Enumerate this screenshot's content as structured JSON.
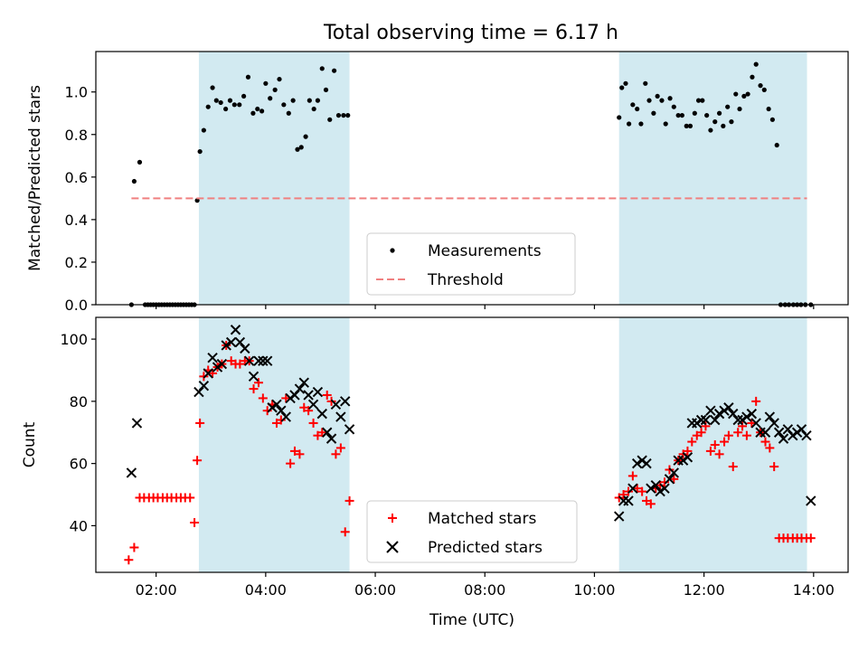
{
  "figure": {
    "title": "Total observing time = 6.17 h"
  },
  "chart_data": [
    {
      "type": "scatter",
      "ylabel": "Matched/Predicted stars",
      "xlabel": "",
      "xlim": [
        0.9,
        14.63
      ],
      "ylim": [
        0,
        1.19
      ],
      "yticks": [
        0.0,
        0.2,
        0.4,
        0.6,
        0.8,
        1.0
      ],
      "ytick_labels": [
        "0.0",
        "0.2",
        "0.4",
        "0.6",
        "0.8",
        "1.0"
      ],
      "xticks": [
        2,
        4,
        6,
        8,
        10,
        12,
        14
      ],
      "grid": false,
      "legend_position": "bottom-center",
      "shaded_intervals": [
        [
          2.78,
          5.53
        ],
        [
          10.45,
          13.88
        ]
      ],
      "shade_color": "#add8e6",
      "series": [
        {
          "name": "Measurements",
          "kind": "scatter",
          "color": "#000000",
          "marker": "dot",
          "x": [
            1.55,
            1.6,
            1.7,
            1.8,
            1.85,
            1.9,
            1.95,
            2.0,
            2.05,
            2.1,
            2.15,
            2.2,
            2.25,
            2.3,
            2.35,
            2.4,
            2.45,
            2.5,
            2.55,
            2.6,
            2.65,
            2.7,
            2.75,
            2.8,
            2.87,
            2.95,
            3.03,
            3.1,
            3.18,
            3.27,
            3.35,
            3.43,
            3.52,
            3.6,
            3.68,
            3.77,
            3.85,
            3.93,
            4.0,
            4.08,
            4.17,
            4.25,
            4.33,
            4.42,
            4.5,
            4.58,
            4.65,
            4.73,
            4.8,
            4.88,
            4.95,
            5.03,
            5.1,
            5.17,
            5.25,
            5.33,
            5.42,
            5.5,
            10.45,
            10.5,
            10.57,
            10.63,
            10.7,
            10.78,
            10.85,
            10.93,
            11.0,
            11.08,
            11.15,
            11.23,
            11.3,
            11.38,
            11.45,
            11.53,
            11.6,
            11.68,
            11.75,
            11.83,
            11.9,
            11.97,
            12.05,
            12.12,
            12.2,
            12.28,
            12.35,
            12.43,
            12.5,
            12.58,
            12.65,
            12.73,
            12.8,
            12.88,
            12.95,
            13.03,
            13.1,
            13.18,
            13.25,
            13.33,
            13.4,
            13.48,
            13.55,
            13.63,
            13.7,
            13.77,
            13.85,
            13.95
          ],
          "y": [
            0.0,
            0.58,
            0.67,
            0.0,
            0.0,
            0.0,
            0.0,
            0.0,
            0.0,
            0.0,
            0.0,
            0.0,
            0.0,
            0.0,
            0.0,
            0.0,
            0.0,
            0.0,
            0.0,
            0.0,
            0.0,
            0.0,
            0.49,
            0.72,
            0.82,
            0.93,
            1.02,
            0.96,
            0.95,
            0.92,
            0.96,
            0.94,
            0.94,
            0.98,
            1.07,
            0.9,
            0.92,
            0.91,
            1.04,
            0.97,
            1.01,
            1.06,
            0.94,
            0.9,
            0.96,
            0.73,
            0.74,
            0.79,
            0.96,
            0.92,
            0.96,
            1.11,
            1.01,
            0.87,
            1.1,
            0.89,
            0.89,
            0.89,
            0.88,
            1.02,
            1.04,
            0.85,
            0.94,
            0.92,
            0.85,
            1.04,
            0.96,
            0.9,
            0.98,
            0.96,
            0.85,
            0.97,
            0.93,
            0.89,
            0.89,
            0.84,
            0.84,
            0.9,
            0.96,
            0.96,
            0.89,
            0.82,
            0.86,
            0.9,
            0.84,
            0.93,
            0.86,
            0.99,
            0.92,
            0.98,
            0.99,
            1.07,
            1.13,
            1.03,
            1.01,
            0.92,
            0.87,
            0.75,
            0.0,
            0.0,
            0.0,
            0.0,
            0.0,
            0.0,
            0.0,
            0.0
          ]
        },
        {
          "name": "Threshold",
          "kind": "dashed-line",
          "color": "#f08080",
          "x": [
            1.55,
            13.88
          ],
          "y": [
            0.5,
            0.5
          ]
        }
      ]
    },
    {
      "type": "scatter",
      "ylabel": "Count",
      "xlabel": "Time (UTC)",
      "xlim": [
        0.9,
        14.63
      ],
      "ylim": [
        25,
        107
      ],
      "yticks": [
        40,
        60,
        80,
        100
      ],
      "ytick_labels": [
        "40",
        "60",
        "80",
        "100"
      ],
      "xticks": [
        2,
        4,
        6,
        8,
        10,
        12,
        14
      ],
      "xtick_labels": [
        "02:00",
        "04:00",
        "06:00",
        "08:00",
        "10:00",
        "12:00",
        "14:00"
      ],
      "grid": false,
      "legend_position": "bottom-center",
      "shaded_intervals": [
        [
          2.78,
          5.53
        ],
        [
          10.45,
          13.88
        ]
      ],
      "shade_color": "#add8e6",
      "series": [
        {
          "name": "Matched stars",
          "kind": "scatter",
          "color": "#ff0000",
          "marker": "plus",
          "x": [
            1.5,
            1.6,
            1.7,
            1.78,
            1.87,
            1.95,
            2.03,
            2.12,
            2.2,
            2.28,
            2.37,
            2.45,
            2.53,
            2.62,
            2.7,
            2.75,
            2.8,
            2.87,
            2.95,
            3.03,
            3.12,
            3.2,
            3.28,
            3.37,
            3.45,
            3.53,
            3.62,
            3.7,
            3.78,
            3.87,
            3.95,
            4.03,
            4.12,
            4.2,
            4.28,
            4.37,
            4.45,
            4.53,
            4.62,
            4.7,
            4.78,
            4.87,
            4.95,
            5.03,
            5.12,
            5.2,
            5.28,
            5.37,
            5.45,
            5.53,
            10.45,
            10.53,
            10.62,
            10.7,
            10.78,
            10.87,
            10.95,
            11.03,
            11.12,
            11.2,
            11.28,
            11.37,
            11.45,
            11.53,
            11.62,
            11.7,
            11.78,
            11.87,
            11.95,
            12.03,
            12.12,
            12.2,
            12.28,
            12.37,
            12.45,
            12.53,
            12.62,
            12.7,
            12.78,
            12.87,
            12.95,
            13.03,
            13.12,
            13.2,
            13.28,
            13.37,
            13.45,
            13.53,
            13.62,
            13.7,
            13.78,
            13.87,
            13.95
          ],
          "y": [
            29,
            33,
            49,
            49,
            49,
            49,
            49,
            49,
            49,
            49,
            49,
            49,
            49,
            49,
            41,
            61,
            73,
            88,
            90,
            89,
            91,
            92,
            98,
            93,
            92,
            92,
            93,
            93,
            84,
            86,
            81,
            77,
            79,
            73,
            74,
            81,
            60,
            64,
            63,
            78,
            77,
            73,
            69,
            70,
            82,
            80,
            63,
            65,
            38,
            48,
            49,
            50,
            51,
            56,
            52,
            51,
            48,
            47,
            52,
            53,
            54,
            58,
            55,
            61,
            63,
            64,
            67,
            69,
            70,
            72,
            64,
            66,
            63,
            67,
            69,
            59,
            70,
            72,
            69,
            73,
            80,
            70,
            67,
            65,
            59,
            36,
            36,
            36,
            36,
            36,
            36,
            36,
            36
          ],
          "note_trim": true
        },
        {
          "name": "Predicted stars",
          "kind": "scatter",
          "color": "#000000",
          "marker": "x",
          "x": [
            1.55,
            1.65,
            2.78,
            2.87,
            2.95,
            3.03,
            3.12,
            3.2,
            3.28,
            3.37,
            3.45,
            3.53,
            3.62,
            3.7,
            3.78,
            3.87,
            3.95,
            4.03,
            4.12,
            4.2,
            4.28,
            4.37,
            4.45,
            4.53,
            4.62,
            4.7,
            4.78,
            4.87,
            4.95,
            5.03,
            5.12,
            5.2,
            5.28,
            5.37,
            5.45,
            5.53,
            10.45,
            10.53,
            10.62,
            10.7,
            10.78,
            10.87,
            10.95,
            11.03,
            11.12,
            11.2,
            11.28,
            11.37,
            11.45,
            11.53,
            11.62,
            11.7,
            11.78,
            11.87,
            11.95,
            12.03,
            12.12,
            12.2,
            12.28,
            12.37,
            12.45,
            12.53,
            12.62,
            12.7,
            12.78,
            12.87,
            12.95,
            13.03,
            13.12,
            13.2,
            13.28,
            13.37,
            13.45,
            13.53,
            13.62,
            13.7,
            13.78,
            13.87,
            13.95
          ],
          "y": [
            57,
            73,
            83,
            85,
            89,
            94,
            91,
            92,
            98,
            99,
            103,
            99,
            97,
            93,
            88,
            93,
            93,
            93,
            78,
            79,
            77,
            75,
            81,
            82,
            84,
            86,
            82,
            79,
            83,
            76,
            70,
            68,
            79,
            75,
            80,
            71,
            43,
            48,
            48,
            52,
            60,
            61,
            60,
            52,
            53,
            51,
            52,
            55,
            57,
            61,
            61,
            62,
            73,
            73,
            74,
            74,
            77,
            74,
            76,
            77,
            78,
            76,
            74,
            74,
            75,
            76,
            73,
            70,
            70,
            75,
            73,
            70,
            68,
            71,
            69,
            70,
            71,
            69,
            48
          ]
        }
      ]
    }
  ]
}
